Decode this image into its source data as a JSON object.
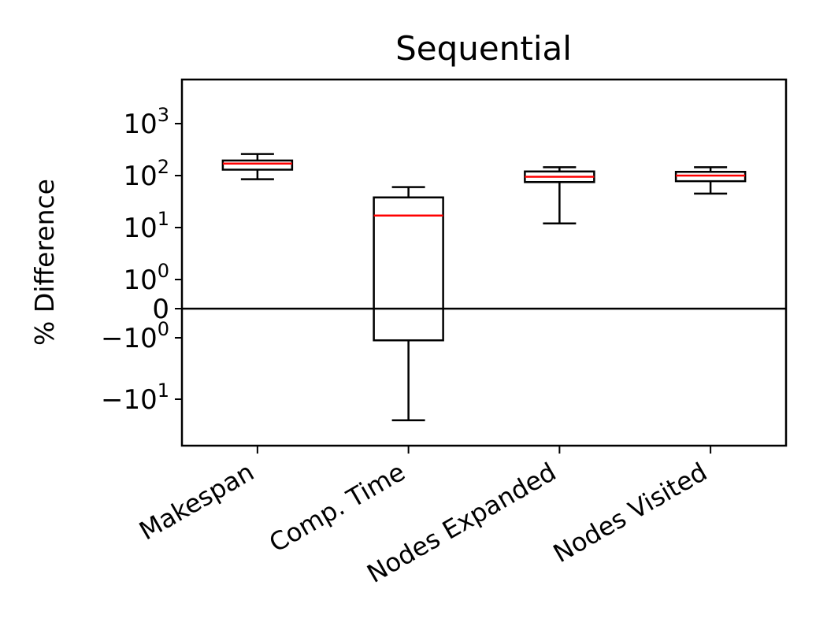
{
  "chart_data": {
    "type": "box",
    "title": "Sequential",
    "xlabel": "",
    "ylabel": "% Difference",
    "yscale": "symlog",
    "ylim": [
      -40,
      4500
    ],
    "ytick_values": [
      -10,
      -1,
      0,
      1,
      10,
      100,
      1000
    ],
    "ytick_labels": [
      {
        "base": "−10",
        "exp": "1"
      },
      {
        "base": "−10",
        "exp": "0"
      },
      {
        "base": "0",
        "exp": ""
      },
      {
        "base": "10",
        "exp": "0"
      },
      {
        "base": "10",
        "exp": "1"
      },
      {
        "base": "10",
        "exp": "2"
      },
      {
        "base": "10",
        "exp": "3"
      }
    ],
    "categories": [
      "Makespan",
      "Comp. Time",
      "Nodes Expanded",
      "Nodes Visited"
    ],
    "boxes": [
      {
        "whisker_low": 85,
        "q1": 130,
        "median": 170,
        "q3": 195,
        "whisker_high": 260
      },
      {
        "whisker_low": -22,
        "q1": -1.1,
        "median": 17,
        "q3": 38,
        "whisker_high": 60
      },
      {
        "whisker_low": 12,
        "q1": 75,
        "median": 95,
        "q3": 120,
        "whisker_high": 145
      },
      {
        "whisker_low": 45,
        "q1": 78,
        "median": 100,
        "q3": 118,
        "whisker_high": 145
      }
    ],
    "grid": false,
    "zero_line": true,
    "colors": {
      "box": "#000000",
      "median": "#ff0000",
      "axis": "#000000"
    }
  }
}
